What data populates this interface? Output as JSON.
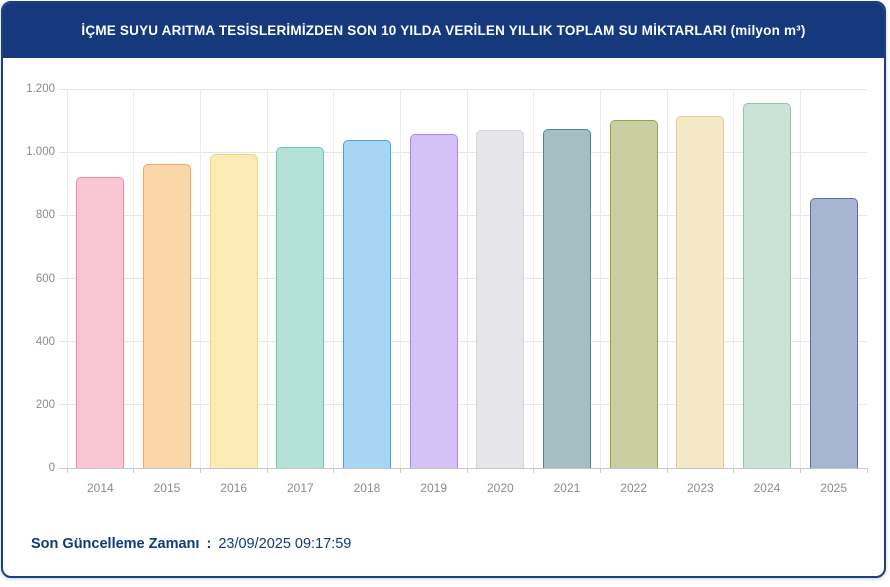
{
  "header": {
    "title": "İÇME SUYU ARITMA TESİSLERİMİZDEN SON 10 YILDA VERİLEN YILLIK TOPLAM SU MİKTARLARI (milyon m³)"
  },
  "footer": {
    "label": "Son Güncelleme Zamanı",
    "separator": ":",
    "value": "23/09/2025 09:17:59"
  },
  "colors": {
    "header_bg": "#16387D",
    "card_border": "#1A3F85",
    "footer_text": "#0E3A7E",
    "grid_line": "#E6E6E6",
    "axis_line": "#C8C8C8",
    "tick_text": "#8B8B8B"
  },
  "chart_data": {
    "type": "bar",
    "title": "İÇME SUYU ARITMA TESİSLERİMİZDEN SON 10 YILDA VERİLEN YILLIK TOPLAM SU MİKTARLARI",
    "unit": "milyon m³",
    "xlabel": "",
    "ylabel": "",
    "categories": [
      "2014",
      "2015",
      "2016",
      "2017",
      "2018",
      "2019",
      "2020",
      "2021",
      "2022",
      "2023",
      "2024",
      "2025"
    ],
    "values": [
      920,
      961,
      995,
      1016,
      1037,
      1058,
      1071,
      1074,
      1102,
      1113,
      1157,
      856
    ],
    "ylim": [
      0,
      1200
    ],
    "ytick_step": 200,
    "ytick_labels_bottom_up": [
      "0",
      "200",
      "400",
      "600",
      "800",
      "1.000",
      "1.200"
    ],
    "grid": true,
    "legend": "none",
    "bar_styles": [
      {
        "fill": "#FBC6D3",
        "border": "#F286A6"
      },
      {
        "fill": "#FBD6A8",
        "border": "#F0A963"
      },
      {
        "fill": "#FDEBB6",
        "border": "#F2D687"
      },
      {
        "fill": "#B3E1D8",
        "border": "#6DC7B9"
      },
      {
        "fill": "#A9D5F4",
        "border": "#44A4E5"
      },
      {
        "fill": "#D4C2F6",
        "border": "#AA88EA"
      },
      {
        "fill": "#E6E6EA",
        "border": "#D2D2DA"
      },
      {
        "fill": "#A4BEC4",
        "border": "#558690"
      },
      {
        "fill": "#C9CFA0",
        "border": "#98A24D"
      },
      {
        "fill": "#F4E8C7",
        "border": "#E2CC90"
      },
      {
        "fill": "#CBE3D6",
        "border": "#90C5AB"
      },
      {
        "fill": "#A8B5D1",
        "border": "#58719E"
      }
    ]
  }
}
